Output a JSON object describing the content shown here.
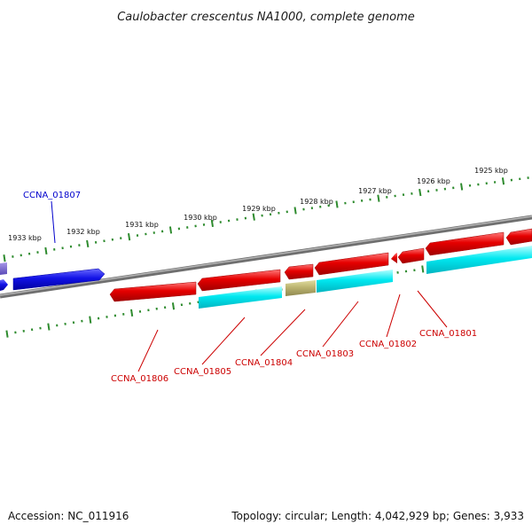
{
  "title": "Caulobacter crescentus NA1000, complete genome",
  "footer": {
    "accession": "Accession: NC_011916",
    "summary": "Topology: circular; Length: 4,042,929 bp; Genes: 3,933"
  },
  "colors": {
    "backbone": "#8a8a8a",
    "tick": "#2e8b2e",
    "forward_gene": "#e00000",
    "reverse_gene": "#1010e0",
    "cds": "#00e5ee",
    "other": "#b8b070",
    "selected_label": "#0000cc",
    "label": "#cc0000"
  },
  "ticks": [
    "1933 kbp",
    "1932 kbp",
    "1931 kbp",
    "1930 kbp",
    "1929 kbp",
    "1928 kbp",
    "1927 kbp",
    "1926 kbp",
    "1925 kbp"
  ],
  "genes": [
    {
      "id": "CCNA_01807",
      "strand": "reverse",
      "color": "blue",
      "highlighted": true
    },
    {
      "id": "CCNA_01806",
      "strand": "reverse",
      "color": "red"
    },
    {
      "id": "CCNA_01805",
      "strand": "reverse",
      "color": "red",
      "cds": true
    },
    {
      "id": "CCNA_01804",
      "strand": "reverse",
      "color": "red",
      "cds_color": "olive"
    },
    {
      "id": "CCNA_01803",
      "strand": "reverse",
      "color": "red",
      "cds": true
    },
    {
      "id": "CCNA_01802",
      "strand": "reverse",
      "color": "red"
    },
    {
      "id": "CCNA_01801",
      "strand": "reverse",
      "color": "red",
      "cds": true
    }
  ]
}
